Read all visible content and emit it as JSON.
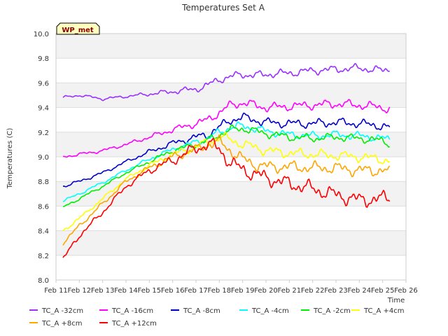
{
  "chart_data": {
    "type": "line",
    "title": "Temperatures Set A",
    "xlabel": "Time",
    "ylabel": "Temperatures (C)",
    "badge": "WP_met",
    "ylim": [
      8.0,
      10.0
    ],
    "yticks": [
      "8.0",
      "8.2",
      "8.4",
      "8.6",
      "8.8",
      "9.0",
      "9.2",
      "9.4",
      "9.6",
      "9.8",
      "10.0"
    ],
    "xlim": [
      11,
      26
    ],
    "xticks": [
      "Feb 11",
      "Feb 12",
      "Feb 13",
      "Feb 14",
      "Feb 15",
      "Feb 16",
      "Feb 17",
      "Feb 18",
      "Feb 19",
      "Feb 20",
      "Feb 21",
      "Feb 22",
      "Feb 23",
      "Feb 24",
      "Feb 25",
      "Feb 26"
    ],
    "grid": true,
    "legend_position": "bottom",
    "x": [
      11.3,
      12,
      13,
      14,
      15,
      16,
      17,
      17.5,
      18,
      18.5,
      19,
      19.5,
      20,
      21,
      22,
      23,
      24,
      25,
      25.3
    ],
    "series": [
      {
        "name": "TC_A -32cm",
        "color": "#9b30ff",
        "values": [
          9.48,
          9.5,
          9.47,
          9.49,
          9.51,
          9.53,
          9.55,
          9.58,
          9.63,
          9.65,
          9.67,
          9.66,
          9.67,
          9.68,
          9.7,
          9.71,
          9.72,
          9.7,
          9.71
        ]
      },
      {
        "name": "TC_A -16cm",
        "color": "#ff00ff",
        "values": [
          9.0,
          9.02,
          9.05,
          9.1,
          9.16,
          9.22,
          9.27,
          9.3,
          9.36,
          9.42,
          9.44,
          9.42,
          9.4,
          9.41,
          9.42,
          9.43,
          9.42,
          9.4,
          9.39
        ]
      },
      {
        "name": "TC_A -8cm",
        "color": "#0000cd",
        "values": [
          8.76,
          8.8,
          8.87,
          8.96,
          9.04,
          9.11,
          9.16,
          9.18,
          9.24,
          9.3,
          9.32,
          9.3,
          9.28,
          9.27,
          9.27,
          9.28,
          9.27,
          9.25,
          9.23
        ]
      },
      {
        "name": "TC_A -4cm",
        "color": "#00ffff",
        "values": [
          8.64,
          8.7,
          8.79,
          8.89,
          8.98,
          9.06,
          9.12,
          9.15,
          9.2,
          9.24,
          9.25,
          9.23,
          9.21,
          9.18,
          9.17,
          9.18,
          9.17,
          9.15,
          9.14
        ]
      },
      {
        "name": "TC_A -2cm",
        "color": "#00ee00",
        "values": [
          8.59,
          8.66,
          8.76,
          8.87,
          8.96,
          9.05,
          9.1,
          9.13,
          9.18,
          9.22,
          9.23,
          9.21,
          9.19,
          9.16,
          9.15,
          9.16,
          9.15,
          9.13,
          9.11
        ]
      },
      {
        "name": "TC_A +4cm",
        "color": "#ffff00",
        "values": [
          8.4,
          8.5,
          8.66,
          8.82,
          8.93,
          9.02,
          9.08,
          9.12,
          9.16,
          9.14,
          9.1,
          9.08,
          9.05,
          9.03,
          9.02,
          9.01,
          9.0,
          8.98,
          8.96
        ]
      },
      {
        "name": "TC_A +8cm",
        "color": "#ffa500",
        "values": [
          8.3,
          8.44,
          8.62,
          8.8,
          8.91,
          9.0,
          9.06,
          9.1,
          9.12,
          9.05,
          8.98,
          8.94,
          8.92,
          8.92,
          8.91,
          8.91,
          8.89,
          8.89,
          8.87
        ]
      },
      {
        "name": "TC_A +12cm",
        "color": "#ff0000",
        "values": [
          8.17,
          8.36,
          8.55,
          8.76,
          8.89,
          8.97,
          9.07,
          9.1,
          9.07,
          8.94,
          8.9,
          8.86,
          8.83,
          8.78,
          8.74,
          8.69,
          8.65,
          8.66,
          8.67
        ]
      }
    ]
  }
}
